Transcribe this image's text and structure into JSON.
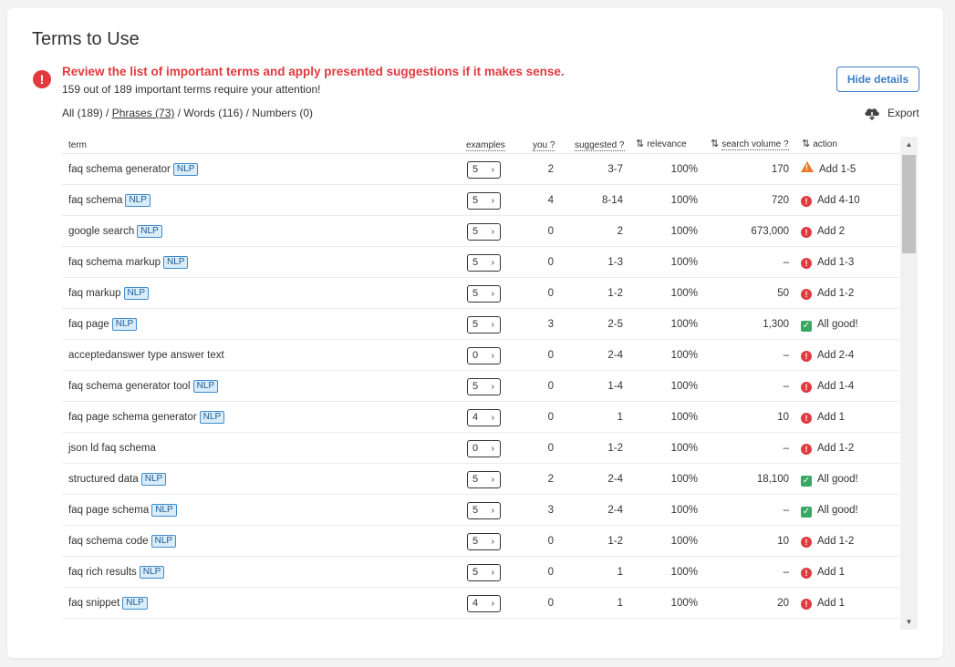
{
  "title": "Terms to Use",
  "alert": {
    "message": "Review the list of important terms and apply presented suggestions if it makes sense.",
    "sub": "159 out of 189 important terms require your attention!"
  },
  "hide_details_label": "Hide details",
  "filters": {
    "all": "All (189)",
    "phrases": "Phrases (73)",
    "words": "Words (116)",
    "numbers": "Numbers (0)",
    "separator": " / "
  },
  "export_label": "Export",
  "columns": {
    "term": "term",
    "examples": "examples",
    "you": "you ?",
    "suggested": "suggested ?",
    "relevance": "relevance",
    "search_volume": "search volume ?",
    "action": "action"
  },
  "nlp_label": "NLP",
  "colors": {
    "error": "#e03a3f",
    "ok": "#3aa865",
    "warning": "#e8792a",
    "accent": "#3d7ec7",
    "nlp_bg": "#d9ecfa"
  },
  "rows": [
    {
      "term": "faq schema generator",
      "nlp": true,
      "examples": "5",
      "you": "2",
      "suggested": "3-7",
      "relevance": "100%",
      "volume": "170",
      "status": "warning",
      "action": "Add 1-5"
    },
    {
      "term": "faq schema",
      "nlp": true,
      "examples": "5",
      "you": "4",
      "suggested": "8-14",
      "relevance": "100%",
      "volume": "720",
      "status": "error",
      "action": "Add 4-10"
    },
    {
      "term": "google search",
      "nlp": true,
      "examples": "5",
      "you": "0",
      "suggested": "2",
      "relevance": "100%",
      "volume": "673,000",
      "status": "error",
      "action": "Add 2"
    },
    {
      "term": "faq schema markup",
      "nlp": true,
      "examples": "5",
      "you": "0",
      "suggested": "1-3",
      "relevance": "100%",
      "volume": "–",
      "status": "error",
      "action": "Add 1-3"
    },
    {
      "term": "faq markup",
      "nlp": true,
      "examples": "5",
      "you": "0",
      "suggested": "1-2",
      "relevance": "100%",
      "volume": "50",
      "status": "error",
      "action": "Add 1-2"
    },
    {
      "term": "faq page",
      "nlp": true,
      "examples": "5",
      "you": "3",
      "suggested": "2-5",
      "relevance": "100%",
      "volume": "1,300",
      "status": "ok",
      "action": "All good!"
    },
    {
      "term": "acceptedanswer type answer text",
      "nlp": false,
      "examples": "0",
      "you": "0",
      "suggested": "2-4",
      "relevance": "100%",
      "volume": "–",
      "status": "error",
      "action": "Add 2-4"
    },
    {
      "term": "faq schema generator tool",
      "nlp": true,
      "examples": "5",
      "you": "0",
      "suggested": "1-4",
      "relevance": "100%",
      "volume": "–",
      "status": "error",
      "action": "Add 1-4"
    },
    {
      "term": "faq page schema generator",
      "nlp": true,
      "examples": "4",
      "you": "0",
      "suggested": "1",
      "relevance": "100%",
      "volume": "10",
      "status": "error",
      "action": "Add 1"
    },
    {
      "term": "json ld faq schema",
      "nlp": false,
      "examples": "0",
      "you": "0",
      "suggested": "1-2",
      "relevance": "100%",
      "volume": "–",
      "status": "error",
      "action": "Add 1-2"
    },
    {
      "term": "structured data",
      "nlp": true,
      "examples": "5",
      "you": "2",
      "suggested": "2-4",
      "relevance": "100%",
      "volume": "18,100",
      "status": "ok",
      "action": "All good!"
    },
    {
      "term": "faq page schema",
      "nlp": true,
      "examples": "5",
      "you": "3",
      "suggested": "2-4",
      "relevance": "100%",
      "volume": "–",
      "status": "ok",
      "action": "All good!"
    },
    {
      "term": "faq schema code",
      "nlp": true,
      "examples": "5",
      "you": "0",
      "suggested": "1-2",
      "relevance": "100%",
      "volume": "10",
      "status": "error",
      "action": "Add 1-2"
    },
    {
      "term": "faq rich results",
      "nlp": true,
      "examples": "5",
      "you": "0",
      "suggested": "1",
      "relevance": "100%",
      "volume": "–",
      "status": "error",
      "action": "Add 1"
    },
    {
      "term": "faq snippet",
      "nlp": true,
      "examples": "4",
      "you": "0",
      "suggested": "1",
      "relevance": "100%",
      "volume": "20",
      "status": "error",
      "action": "Add 1"
    }
  ]
}
